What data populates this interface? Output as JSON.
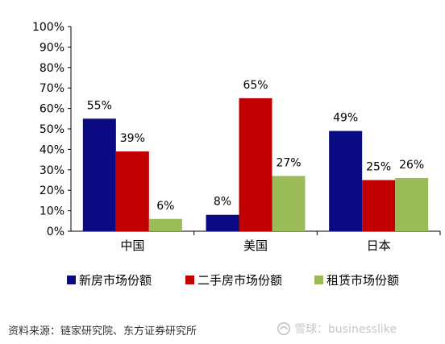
{
  "chart_data": {
    "type": "bar",
    "categories": [
      "中国",
      "美国",
      "日本"
    ],
    "series": [
      {
        "name": "新房市场份额",
        "values": [
          55,
          8,
          49
        ],
        "labels": [
          "55%",
          "8%",
          "49%"
        ],
        "color": "#0a0a82"
      },
      {
        "name": "二手房市场份额",
        "values": [
          39,
          65,
          25
        ],
        "labels": [
          "39%",
          "65%",
          "25%"
        ],
        "color": "#c00000"
      },
      {
        "name": "租赁市场份额",
        "values": [
          6,
          27,
          26
        ],
        "labels": [
          "6%",
          "27%",
          "26%"
        ],
        "color": "#9bbb59"
      }
    ],
    "ylim": [
      0,
      100
    ],
    "yticks": [
      0,
      10,
      20,
      30,
      40,
      50,
      60,
      70,
      80,
      90,
      100
    ],
    "ytick_labels": [
      "0%",
      "10%",
      "20%",
      "30%",
      "40%",
      "50%",
      "60%",
      "70%",
      "80%",
      "90%",
      "100%"
    ],
    "legend_position": "bottom",
    "grid": false
  },
  "footer": {
    "source": "资料来源：链家研究院、东方证券研究所",
    "watermark": "雪球：businesslike"
  }
}
